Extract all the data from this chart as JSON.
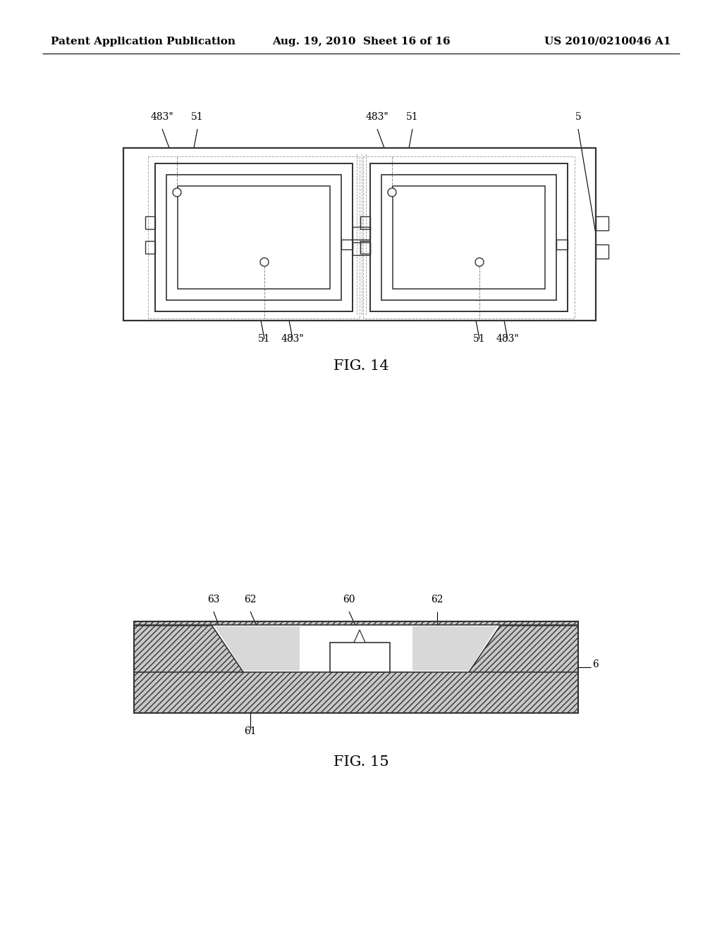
{
  "background_color": "#ffffff",
  "header_left": "Patent Application Publication",
  "header_mid": "Aug. 19, 2010  Sheet 16 of 16",
  "header_right": "US 2010/0210046 A1",
  "header_fontsize": 11,
  "fig14_label": "FIG. 14",
  "fig15_label": "FIG. 15",
  "line_color": "#333333",
  "label_fontsize": 10,
  "fig_label_fontsize": 15
}
